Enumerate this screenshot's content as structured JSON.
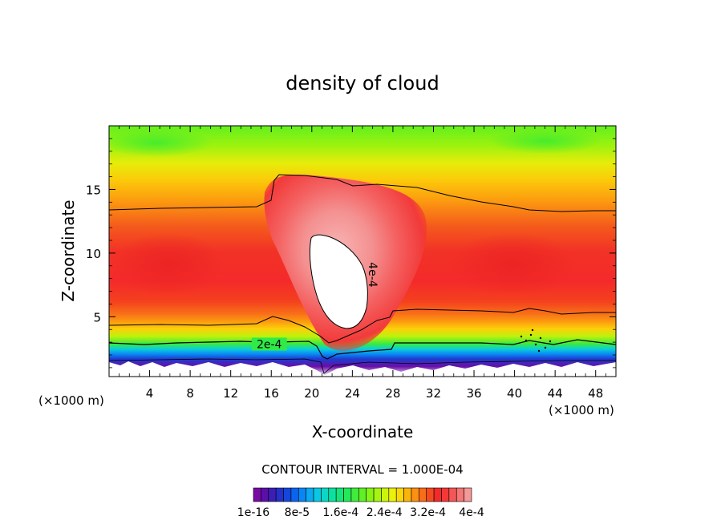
{
  "chart_data": {
    "type": "heatmap",
    "title": "density of cloud",
    "xlabel": "X-coordinate",
    "ylabel": "Z-coordinate",
    "x_unit_left": "(×1000 m)",
    "x_unit_right": "(×1000 m)",
    "xlim": [
      0,
      50
    ],
    "ylim": [
      0.3,
      20
    ],
    "x_ticks": [
      4,
      8,
      12,
      16,
      20,
      24,
      28,
      32,
      36,
      40,
      44,
      48
    ],
    "x_tick_labels": [
      "4",
      "8",
      "12",
      "16",
      "20",
      "24",
      "28",
      "32",
      "36",
      "40",
      "44",
      "48"
    ],
    "y_ticks": [
      5,
      10,
      15
    ],
    "y_tick_labels": [
      "5",
      "10",
      "15"
    ],
    "contour_interval_text": "CONTOUR INTERVAL = 1.000E-04",
    "contour_labels": [
      {
        "text": "2e-4",
        "x": 15.8,
        "y": 2.6
      },
      {
        "text": "4e-4",
        "x": 25.3,
        "y": 8.3
      }
    ],
    "colorbar": {
      "colors": [
        "#7a0aa6",
        "#5a0fa6",
        "#3c1eb4",
        "#2430c8",
        "#1446dc",
        "#0a64ee",
        "#0a86f4",
        "#0aaaf2",
        "#0ac8e4",
        "#0ad8c6",
        "#0ce0a0",
        "#14e47a",
        "#24e858",
        "#40ec3c",
        "#60f026",
        "#84f414",
        "#a8f40e",
        "#ccf40a",
        "#ecf00a",
        "#f8d80a",
        "#fcb40a",
        "#fc9012",
        "#f86c1a",
        "#f44a20",
        "#f22a2a",
        "#f43838",
        "#f45656",
        "#f47676",
        "#f49898"
      ],
      "labels": [
        "1e-16",
        "8e-5",
        "1.6e-4",
        "2.4e-4",
        "3.2e-4",
        "4e-4"
      ],
      "label_positions": [
        0,
        0.2,
        0.4,
        0.6,
        0.8,
        1.0
      ]
    }
  }
}
